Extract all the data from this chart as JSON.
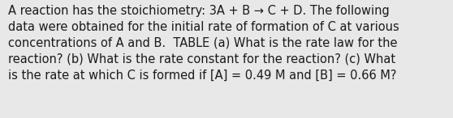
{
  "text": "A reaction has the stoichiometry: 3A + B → C + D. The following\ndata were obtained for the initial rate of formation of C at various\nconcentrations of A and B.  TABLE (a) What is the rate law for the\nreaction? (b) What is the rate constant for the reaction? (c) What\nis the rate at which C is formed if [A] = 0.49 M and [B] = 0.66 M?",
  "background_color": "#e8e8e8",
  "text_color": "#1a1a1a",
  "font_size": 10.5,
  "fig_width": 5.58,
  "fig_height": 1.46
}
